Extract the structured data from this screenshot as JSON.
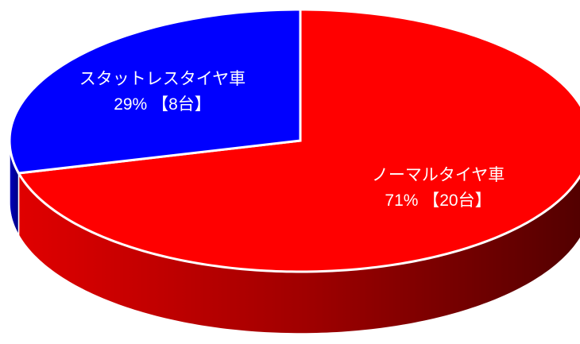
{
  "chart_data": {
    "type": "pie",
    "categories": [
      "ノーマルタイヤ車",
      "スタットレスタイヤ車"
    ],
    "values": [
      71,
      29
    ],
    "value_labels": [
      "71% 【20台】",
      "29% 【8台】"
    ],
    "colors": [
      "#ff0000",
      "#0000ff"
    ]
  }
}
